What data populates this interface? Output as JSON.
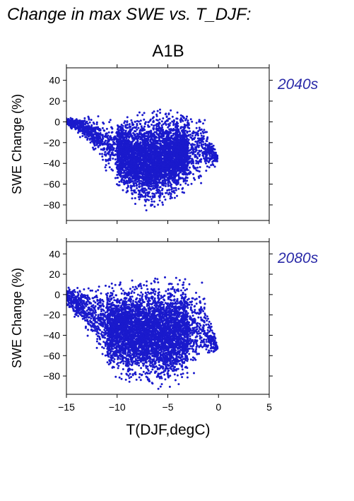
{
  "figure": {
    "main_title": "Change in max SWE vs. T_DJF:",
    "scenario_title": "A1B",
    "xlabel": "T(DJF,degC)"
  },
  "colors": {
    "points": "#1a1acc",
    "period_label": "#2a2aa8",
    "axes": "#000000"
  },
  "chart_data": [
    {
      "type": "scatter",
      "period_label": "2040s",
      "ylabel": "SWE Change (%)",
      "xlim": [
        -15,
        5
      ],
      "ylim": [
        -95,
        52
      ],
      "xticks": [
        -15,
        -10,
        -5,
        0,
        5
      ],
      "yticks": [
        40,
        20,
        0,
        -20,
        -40,
        -60,
        -80
      ],
      "ytick_labels": [
        "40",
        "20",
        "0",
        "−20",
        "−40",
        "−60",
        "−80"
      ],
      "show_xtick_labels": false,
      "grid": false,
      "point_cloud": {
        "x_range": [
          -15.2,
          -0.1
        ],
        "envelope_top": [
          [
            -15.2,
            5
          ],
          [
            -12,
            6
          ],
          [
            -9,
            8
          ],
          [
            -6,
            13
          ],
          [
            -3,
            12
          ],
          [
            -1.5,
            10
          ],
          [
            -0.1,
            -30
          ]
        ],
        "envelope_bottom": [
          [
            -15.2,
            -2
          ],
          [
            -13,
            -20
          ],
          [
            -11,
            -50
          ],
          [
            -9,
            -75
          ],
          [
            -7,
            -87
          ],
          [
            -5,
            -80
          ],
          [
            -3,
            -68
          ],
          [
            -1.5,
            -60
          ],
          [
            -0.1,
            -40
          ]
        ],
        "dense_core": {
          "x": [
            -10,
            -3
          ],
          "y": [
            -70,
            5
          ]
        }
      }
    },
    {
      "type": "scatter",
      "period_label": "2080s",
      "ylabel": "SWE Change (%)",
      "xlim": [
        -15,
        5
      ],
      "ylim": [
        -98,
        52
      ],
      "xticks": [
        -15,
        -10,
        -5,
        0,
        5
      ],
      "xtick_labels": [
        "−15",
        "−10",
        "−5",
        "0",
        "5"
      ],
      "yticks": [
        40,
        20,
        0,
        -20,
        -40,
        -60,
        -80
      ],
      "ytick_labels": [
        "40",
        "20",
        "0",
        "−20",
        "−40",
        "−60",
        "−80"
      ],
      "show_xtick_labels": true,
      "grid": false,
      "point_cloud": {
        "x_range": [
          -15.2,
          -0.1
        ],
        "envelope_top": [
          [
            -15.2,
            8
          ],
          [
            -12,
            10
          ],
          [
            -9,
            15
          ],
          [
            -6,
            19
          ],
          [
            -3,
            17
          ],
          [
            -1.5,
            12
          ],
          [
            -0.1,
            -50
          ]
        ],
        "envelope_bottom": [
          [
            -15.2,
            -10
          ],
          [
            -13,
            -40
          ],
          [
            -11,
            -75
          ],
          [
            -9,
            -90
          ],
          [
            -7,
            -93
          ],
          [
            -5,
            -95
          ],
          [
            -3,
            -85
          ],
          [
            -1.5,
            -70
          ],
          [
            -0.1,
            -55
          ]
        ],
        "dense_core": {
          "x": [
            -11,
            -3
          ],
          "y": [
            -85,
            10
          ]
        }
      }
    }
  ]
}
